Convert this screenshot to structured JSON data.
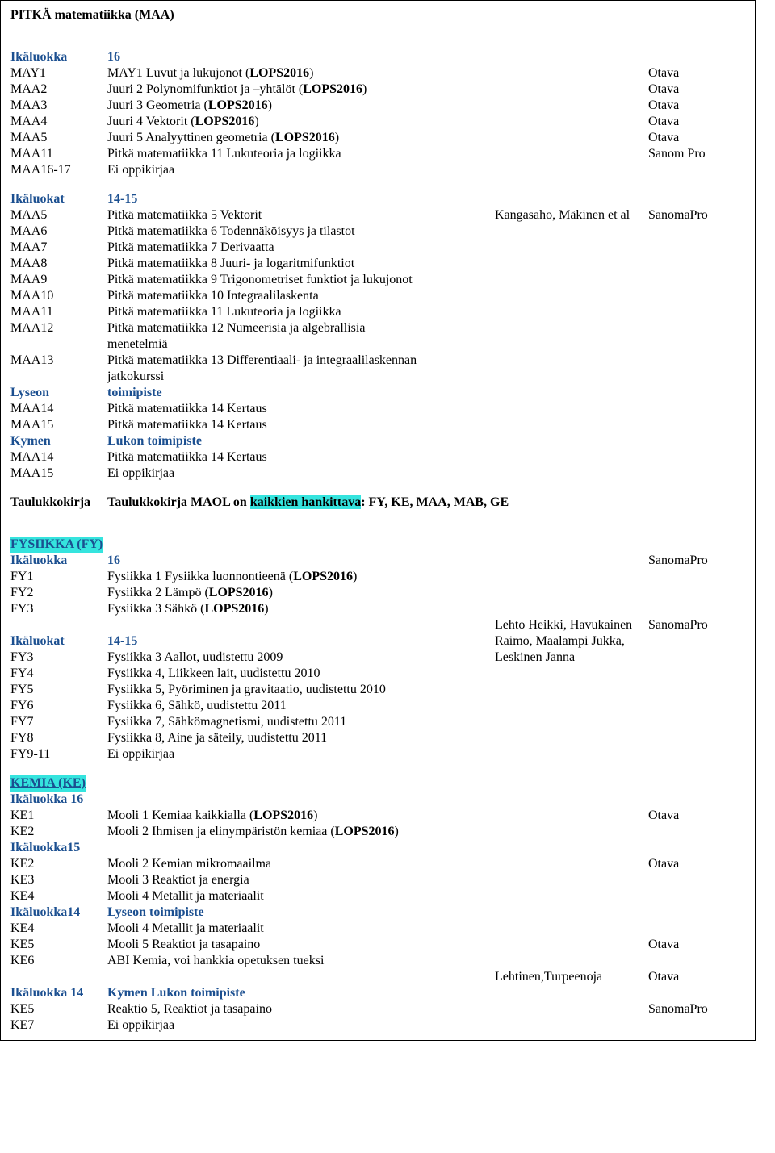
{
  "maa": {
    "title": "PITKÄ matematiikka (MAA)",
    "group1_label": "Ikäluokka",
    "group1_value": "16",
    "g1": [
      {
        "code": "MAY1",
        "desc_a": "MAY1 Luvut ja lukujonot (",
        "desc_b": "LOPS2016",
        "desc_c": ")",
        "pub": "Otava"
      },
      {
        "code": "MAA2",
        "desc_a": "Juuri 2 Polynomifunktiot ja –yhtälöt (",
        "desc_b": "LOPS2016",
        "desc_c": ")",
        "pub": "Otava"
      },
      {
        "code": "MAA3",
        "desc_a": "Juuri 3 Geometria (",
        "desc_b": "LOPS2016",
        "desc_c": ")",
        "pub": "Otava"
      },
      {
        "code": "MAA4",
        "desc_a": "Juuri 4 Vektorit (",
        "desc_b": "LOPS2016",
        "desc_c": ")",
        "pub": "Otava"
      },
      {
        "code": "MAA5",
        "desc_a": "Juuri 5 Analyyttinen geometria (",
        "desc_b": "LOPS2016",
        "desc_c": ")",
        "pub": "Otava"
      },
      {
        "code": "MAA11",
        "desc_a": "Pitkä matematiikka 11 Lukuteoria ja logiikka",
        "desc_b": "",
        "desc_c": "",
        "pub": "Sanom Pro"
      },
      {
        "code": "MAA16-17",
        "desc_a": "Ei oppikirjaa",
        "desc_b": "",
        "desc_c": "",
        "pub": ""
      }
    ],
    "group2_label": "Ikäluokat",
    "group2_value": "14-15",
    "g2_first": {
      "code": "MAA5",
      "desc": "Pitkä matematiikka 5 Vektorit",
      "auth": "Kangasaho, Mäkinen et al",
      "pub": "SanomaPro"
    },
    "g2": [
      {
        "code": "MAA6",
        "desc": "Pitkä matematiikka 6 Todennäköisyys ja tilastot"
      },
      {
        "code": "MAA7",
        "desc": "Pitkä matematiikka 7 Derivaatta"
      },
      {
        "code": "MAA8",
        "desc": "Pitkä matematiikka 8 Juuri- ja logaritmifunktiot"
      },
      {
        "code": "MAA9",
        "desc": "Pitkä matematiikka 9 Trigonometriset funktiot ja lukujonot"
      },
      {
        "code": "MAA10",
        "desc": "Pitkä matematiikka 10 Integraalilaskenta"
      },
      {
        "code": "MAA11",
        "desc": "Pitkä matematiikka 11 Lukuteoria ja logiikka"
      },
      {
        "code": "MAA12",
        "desc": "Pitkä matematiikka 12 Numeerisia ja algebrallisia"
      },
      {
        "code": "",
        "desc": "menetelmiä"
      },
      {
        "code": "MAA13",
        "desc": "Pitkä matematiikka 13 Differentiaali- ja integraalilaskennan"
      },
      {
        "code": "",
        "desc": "jatkokurssi"
      }
    ],
    "lyseon_l": "Lyseon",
    "lyseon_r": "toimipiste",
    "ly": [
      {
        "code": "MAA14",
        "desc": "Pitkä matematiikka 14 Kertaus"
      },
      {
        "code": "MAA15",
        "desc": "Pitkä matematiikka 14 Kertaus"
      }
    ],
    "kymen_l": "Kymen",
    "kymen_r": "Lukon toimipiste",
    "ky": [
      {
        "code": "MAA14",
        "desc": "Pitkä matematiikka 14 Kertaus"
      },
      {
        "code": "MAA15",
        "desc": "Ei oppikirjaa"
      }
    ],
    "tauluk_l": "Taulukkokirja",
    "tauluk_a": "Taulukkokirja MAOL on ",
    "tauluk_b": "kaikkien hankittava",
    "tauluk_c": ": FY, KE, MAA, MAB, GE"
  },
  "fy": {
    "title": "FYSIIKKA (FY)",
    "group1_label": "Ikäluokka",
    "group1_value": "16",
    "group1_pub": "SanomaPro",
    "g1": [
      {
        "code": "FY1",
        "a": "Fysiikka 1 Fysiikka luonnontieenä (",
        "b": "LOPS2016",
        "c": ")"
      },
      {
        "code": "FY2",
        "a": "Fysiikka 2 Lämpö (",
        "b": "LOPS2016",
        "c": ")"
      },
      {
        "code": "FY3",
        "a": "Fysiikka 3 Sähkö (",
        "b": "LOPS2016",
        "c": ")"
      }
    ],
    "auth1": "Lehto Heikki, Havukainen",
    "auth1_pub": "SanomaPro",
    "group2_label": "Ikäluokat",
    "group2_value": "14-15",
    "auth2": "Raimo, Maalampi Jukka,",
    "g2_first": {
      "code": "FY3",
      "desc": "Fysiikka 3 Aallot, uudistettu  2009",
      "auth": "Leskinen Janna"
    },
    "g2": [
      {
        "code": "FY4",
        "desc": "Fysiikka 4, Liikkeen lait, uudistettu  2010"
      },
      {
        "code": "FY5",
        "desc": "Fysiikka 5, Pyöriminen ja gravitaatio, uudistettu  2010"
      },
      {
        "code": "FY6",
        "desc": "Fysiikka 6, Sähkö, uudistettu  2011"
      },
      {
        "code": "FY7",
        "desc": "Fysiikka 7, Sähkömagnetismi, uudistettu  2011"
      },
      {
        "code": "FY8",
        "desc": "Fysiikka 8, Aine ja säteily, uudistettu  2011"
      },
      {
        "code": "FY9-11",
        "desc": "Ei oppikirjaa"
      }
    ]
  },
  "ke": {
    "title": "KEMIA (KE)",
    "g16_label": "Ikäluokka 16",
    "g16": [
      {
        "code": "KE1",
        "a": "Mooli 1 Kemiaa kaikkialla (",
        "b": "LOPS2016",
        "c": ")",
        "pub": "Otava"
      },
      {
        "code": "KE2",
        "a": "Mooli 2 Ihmisen ja elinympäristön kemiaa (",
        "b": "LOPS2016",
        "c": ")",
        "pub": ""
      }
    ],
    "g15_label": "Ikäluokka15",
    "g15": [
      {
        "code": "KE2",
        "desc": "Mooli 2 Kemian mikromaailma",
        "pub": "Otava"
      },
      {
        "code": "KE3",
        "desc": "Mooli 3 Reaktiot ja energia",
        "pub": ""
      },
      {
        "code": "KE4",
        "desc": "Mooli 4 Metallit ja materiaalit",
        "pub": ""
      }
    ],
    "g14a_label": "Ikäluokka14",
    "g14a_value": "Lyseon toimipiste",
    "g14a": [
      {
        "code": "KE4",
        "desc": "Mooli 4 Metallit ja materiaalit",
        "pub": ""
      },
      {
        "code": "KE5",
        "desc": "Mooli 5 Reaktiot ja tasapaino",
        "pub": "Otava"
      },
      {
        "code": "KE6",
        "desc": "ABI Kemia, voi hankkia opetuksen tueksi",
        "pub": ""
      }
    ],
    "g14a_auth": "Lehtinen,Turpeenoja",
    "g14a_pub": "Otava",
    "g14b_label": "Ikäluokka 14",
    "g14b_value": "Kymen Lukon toimipiste",
    "g14b": [
      {
        "code": "KE5",
        "desc": "Reaktio 5, Reaktiot ja tasapaino",
        "pub": "SanomaPro"
      },
      {
        "code": "KE7",
        "desc": "Ei oppikirjaa",
        "pub": ""
      }
    ]
  }
}
